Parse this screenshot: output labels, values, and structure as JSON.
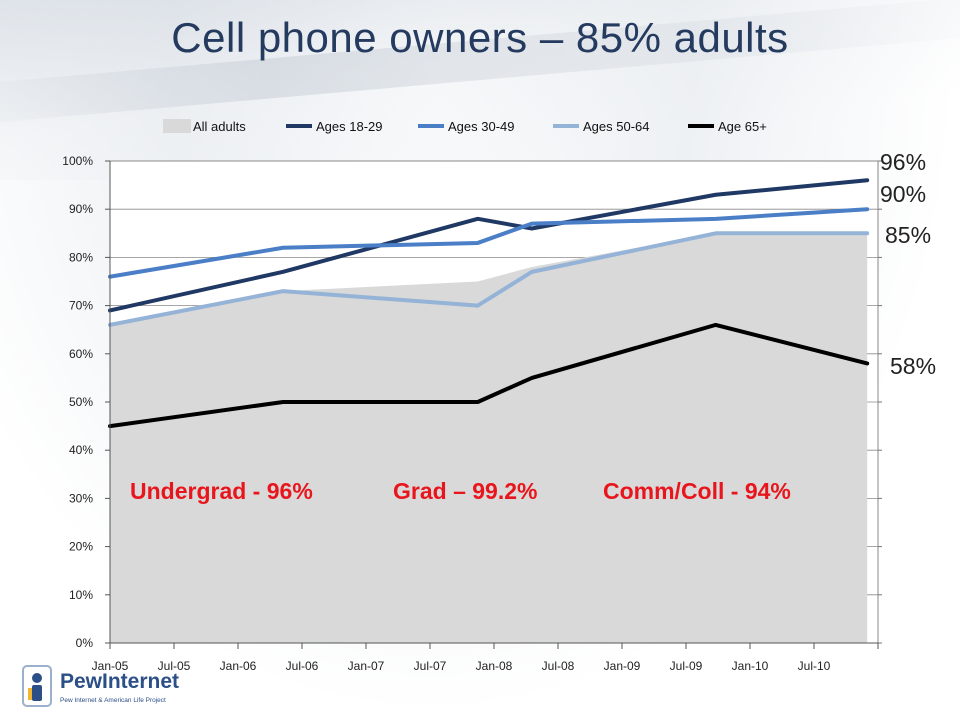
{
  "title": "Cell phone owners – 85% adults",
  "chart_data": {
    "type": "line",
    "x_ticks": [
      "Jan-05",
      "Jul-05",
      "Jan-06",
      "Jul-06",
      "Jan-07",
      "Jul-07",
      "Jan-08",
      "Jul-08",
      "Jan-09",
      "Jul-09",
      "Jan-10",
      "Jul-10"
    ],
    "y_ticks": [
      "0%",
      "10%",
      "20%",
      "30%",
      "40%",
      "50%",
      "60%",
      "70%",
      "80%",
      "90%",
      "100%"
    ],
    "ylim": [
      0,
      100
    ],
    "x_range": [
      "2005-01",
      "2010-12"
    ],
    "grid": true,
    "legend_position": "top",
    "series": [
      {
        "name": "All adults",
        "kind": "area",
        "color": "#d9d9d9",
        "points": [
          [
            "2005-01",
            66
          ],
          [
            "2006-05",
            73
          ],
          [
            "2007-11",
            75
          ],
          [
            "2008-04",
            78
          ],
          [
            "2009-09",
            85
          ],
          [
            "2010-11",
            85
          ]
        ]
      },
      {
        "name": "Ages 18-29",
        "kind": "line",
        "color": "#1f3864",
        "points": [
          [
            "2005-01",
            69
          ],
          [
            "2006-05",
            77
          ],
          [
            "2007-11",
            88
          ],
          [
            "2008-04",
            86
          ],
          [
            "2009-09",
            93
          ],
          [
            "2010-11",
            96
          ]
        ]
      },
      {
        "name": "Ages 30-49",
        "kind": "line",
        "color": "#4a7ec6",
        "points": [
          [
            "2005-01",
            76
          ],
          [
            "2006-05",
            82
          ],
          [
            "2007-11",
            83
          ],
          [
            "2008-04",
            87
          ],
          [
            "2009-09",
            88
          ],
          [
            "2010-11",
            90
          ]
        ]
      },
      {
        "name": "Ages 50-64",
        "kind": "line",
        "color": "#95b3d7",
        "points": [
          [
            "2005-01",
            66
          ],
          [
            "2006-05",
            73
          ],
          [
            "2007-11",
            70
          ],
          [
            "2008-04",
            77
          ],
          [
            "2009-09",
            85
          ],
          [
            "2010-11",
            85
          ]
        ]
      },
      {
        "name": "Age 65+",
        "kind": "line",
        "color": "#000000",
        "points": [
          [
            "2005-01",
            45
          ],
          [
            "2006-05",
            50
          ],
          [
            "2007-11",
            50
          ],
          [
            "2008-04",
            55
          ],
          [
            "2009-09",
            66
          ],
          [
            "2010-11",
            58
          ]
        ]
      }
    ],
    "end_labels": [
      {
        "text": "96%",
        "value": 96
      },
      {
        "text": "90%",
        "value": 90
      },
      {
        "text": "85%",
        "value": 85
      },
      {
        "text": "58%",
        "value": 58
      }
    ],
    "annotations": [
      "Undergrad - 96%",
      "Grad – 99.2%",
      "Comm/Coll - 94%"
    ],
    "annotation_color": "#e8161c"
  },
  "logo": {
    "name": "PewInternet",
    "subtitle": "Pew Internet & American Life Project"
  }
}
